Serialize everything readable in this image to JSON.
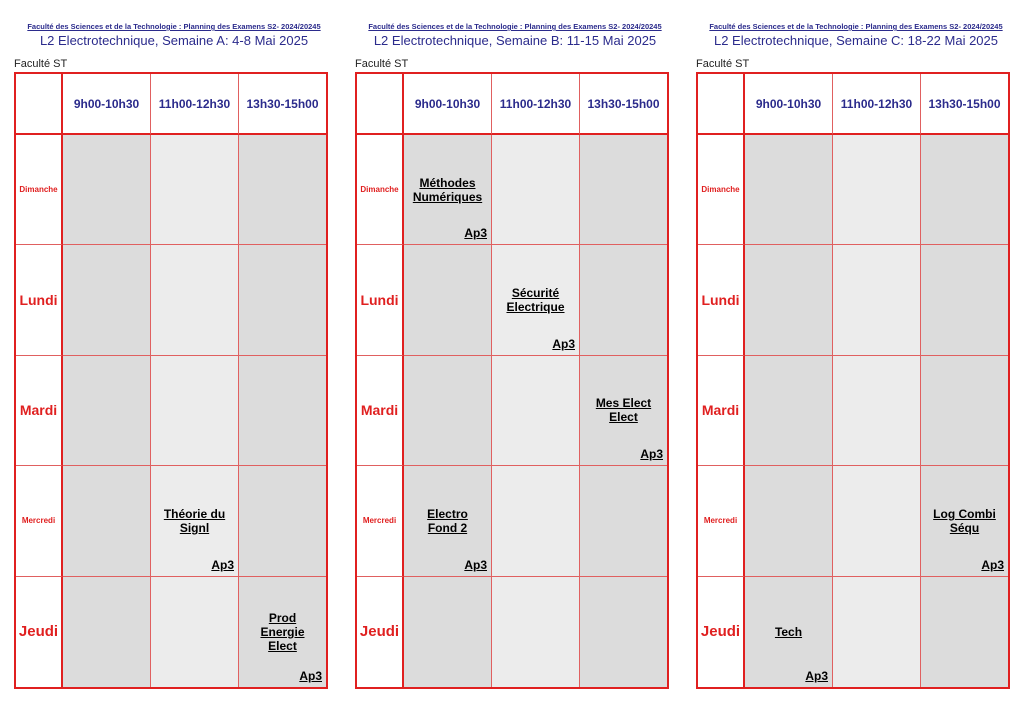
{
  "panels": [
    {
      "header_line": "Faculté des Sciences et de la Technologie : Planning des Examens S2- 2024/20245",
      "title": "L2 Electrotechnique, Semaine A: 4-8 Mai 2025",
      "faculty": "Faculté ST",
      "slots": [
        "9h00-10h30",
        "11h00-12h30",
        "13h30-15h00"
      ],
      "days": [
        "Dimanche",
        "Lundi",
        "Mardi",
        "Mercredi",
        "Jeudi"
      ],
      "exams": [
        [
          "",
          "",
          ""
        ],
        [
          "",
          "",
          ""
        ],
        [
          "",
          "",
          ""
        ],
        [
          "",
          "Théorie du\nSignl",
          ""
        ],
        [
          "",
          "",
          "Prod\nEnergie\nElect"
        ]
      ],
      "rooms": [
        [
          "",
          "",
          ""
        ],
        [
          "",
          "",
          ""
        ],
        [
          "",
          "",
          ""
        ],
        [
          "",
          "Ap3",
          ""
        ],
        [
          "",
          "",
          "Ap3"
        ]
      ]
    },
    {
      "header_line": "Faculté des Sciences et de la Technologie : Planning des Examens S2- 2024/20245",
      "title": "L2 Electrotechnique, Semaine B: 11-15 Mai 2025",
      "faculty": "Faculté ST",
      "slots": [
        "9h00-10h30",
        "11h00-12h30",
        "13h30-15h00"
      ],
      "days": [
        "Dimanche",
        "Lundi",
        "Mardi",
        "Mercredi",
        "Jeudi"
      ],
      "exams": [
        [
          "Méthodes\nNumériques",
          "",
          ""
        ],
        [
          "",
          "Sécurité\nElectrique",
          ""
        ],
        [
          "",
          "",
          "Mes Elect\nElect"
        ],
        [
          "Electro\nFond 2",
          "",
          ""
        ],
        [
          "",
          "",
          ""
        ]
      ],
      "rooms": [
        [
          "Ap3",
          "",
          ""
        ],
        [
          "",
          "Ap3",
          ""
        ],
        [
          "",
          "",
          "Ap3"
        ],
        [
          "Ap3",
          "",
          ""
        ],
        [
          "",
          "",
          ""
        ]
      ]
    },
    {
      "header_line": "Faculté des Sciences et de la Technologie : Planning des Examens S2- 2024/20245",
      "title": "L2 Electrotechnique, Semaine C: 18-22 Mai 2025",
      "faculty": "Faculté ST",
      "slots": [
        "9h00-10h30",
        "11h00-12h30",
        "13h30-15h00"
      ],
      "days": [
        "Dimanche",
        "Lundi",
        "Mardi",
        "Mercredi",
        "Jeudi"
      ],
      "exams": [
        [
          "",
          "",
          ""
        ],
        [
          "",
          "",
          ""
        ],
        [
          "",
          "",
          ""
        ],
        [
          "",
          "",
          "Log Combi\nSéqu"
        ],
        [
          "Tech",
          "",
          ""
        ]
      ],
      "rooms": [
        [
          "",
          "",
          ""
        ],
        [
          "",
          "",
          ""
        ],
        [
          "",
          "",
          ""
        ],
        [
          "",
          "",
          "Ap3"
        ],
        [
          "Ap3",
          "",
          ""
        ]
      ]
    }
  ],
  "colors": {
    "grid_border": "#e02020",
    "day_text": "#e02020",
    "header_text": "#2b2b8c",
    "cell_dark": "#dcdcdc",
    "cell_light": "#ececec"
  }
}
